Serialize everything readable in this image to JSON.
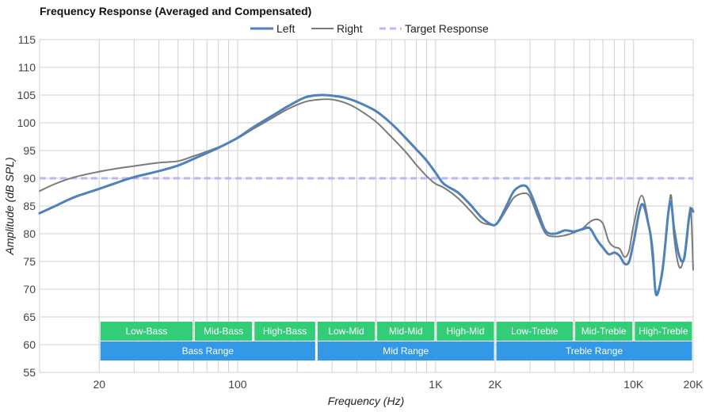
{
  "chart_data": {
    "type": "line",
    "title": "Frequency Response (Averaged and Compensated)",
    "xlabel": "Frequency (Hz)",
    "ylabel": "Amplitude (dB SPL)",
    "x_scale": "log",
    "xlim": [
      10,
      20000
    ],
    "ylim": [
      55,
      115
    ],
    "yticks": [
      55,
      60,
      65,
      70,
      75,
      80,
      85,
      90,
      95,
      100,
      105,
      110,
      115
    ],
    "xticks": [
      {
        "value": 20,
        "label": "20"
      },
      {
        "value": 100,
        "label": "100"
      },
      {
        "value": 1000,
        "label": "1K"
      },
      {
        "value": 2000,
        "label": "2K"
      },
      {
        "value": 10000,
        "label": "10K"
      },
      {
        "value": 20000,
        "label": "20K"
      }
    ],
    "grid": true,
    "legend_position": "top-center",
    "legend": [
      {
        "name": "Left",
        "color": "#4f81bd",
        "style": "solid"
      },
      {
        "name": "Right",
        "color": "#7a7a7a",
        "style": "solid"
      },
      {
        "name": "Target Response",
        "color": "#b8b8f2",
        "style": "dashed"
      }
    ],
    "series": [
      {
        "name": "Left",
        "color": "#4f81bd",
        "x": [
          10,
          12,
          15,
          20,
          25,
          30,
          40,
          50,
          60,
          80,
          100,
          120,
          150,
          180,
          220,
          260,
          300,
          350,
          400,
          500,
          600,
          700,
          800,
          900,
          1000,
          1100,
          1300,
          1500,
          1700,
          1900,
          2000,
          2100,
          2300,
          2500,
          2800,
          3000,
          3300,
          3600,
          4000,
          4500,
          5000,
          5500,
          6000,
          6500,
          7000,
          7500,
          8000,
          8500,
          9000,
          9500,
          10000,
          11000,
          12000,
          12500,
          13000,
          14000,
          15000,
          15500,
          16000,
          17000,
          18000,
          19000,
          19500,
          20000
        ],
        "y": [
          83.7,
          85.0,
          86.6,
          88.1,
          89.3,
          90.2,
          91.3,
          92.3,
          93.5,
          95.5,
          97.3,
          99.2,
          101.3,
          103.0,
          104.6,
          105.0,
          104.9,
          104.5,
          103.8,
          102.1,
          99.8,
          97.4,
          95.2,
          93.2,
          91.0,
          89.0,
          87.4,
          85.2,
          83.0,
          81.7,
          81.6,
          82.5,
          85.3,
          87.8,
          88.7,
          87.5,
          83.8,
          80.5,
          80.0,
          80.6,
          80.4,
          80.8,
          81.0,
          79.0,
          77.5,
          76.3,
          76.6,
          76.0,
          74.6,
          75.0,
          78.5,
          85.3,
          81.0,
          76.5,
          69.0,
          73.5,
          84.0,
          85.5,
          81.0,
          76.0,
          75.5,
          82.5,
          84.5,
          84.0
        ]
      },
      {
        "name": "Right",
        "color": "#7a7a7a",
        "x": [
          10,
          12,
          15,
          20,
          25,
          30,
          40,
          50,
          60,
          80,
          100,
          120,
          150,
          180,
          220,
          260,
          300,
          350,
          400,
          500,
          600,
          700,
          800,
          900,
          1000,
          1100,
          1300,
          1500,
          1700,
          1900,
          2000,
          2100,
          2300,
          2500,
          2800,
          3000,
          3300,
          3600,
          4000,
          4500,
          5000,
          5500,
          6000,
          6500,
          7000,
          7500,
          8000,
          8500,
          9000,
          9500,
          10000,
          11000,
          12000,
          12500,
          13000,
          14000,
          15000,
          15500,
          16000,
          17000,
          18000,
          19000,
          19500,
          20000
        ],
        "y": [
          87.7,
          89.0,
          90.2,
          91.2,
          91.8,
          92.2,
          92.8,
          93.1,
          94.0,
          95.6,
          97.2,
          98.9,
          100.9,
          102.5,
          103.8,
          104.2,
          104.2,
          103.6,
          102.6,
          100.2,
          97.4,
          94.9,
          92.4,
          90.4,
          89.0,
          88.3,
          86.4,
          84.1,
          82.1,
          81.6,
          81.6,
          82.3,
          84.6,
          86.6,
          87.3,
          86.6,
          82.9,
          80.0,
          79.5,
          79.7,
          80.2,
          80.9,
          82.1,
          82.6,
          81.8,
          78.6,
          77.6,
          77.3,
          75.8,
          77.0,
          81.5,
          86.9,
          81.0,
          75.0,
          69.5,
          73.0,
          84.0,
          86.8,
          79.5,
          74.0,
          76.0,
          83.0,
          84.0,
          73.5
        ]
      },
      {
        "name": "Target Response",
        "color": "#b8b8f2",
        "dashed": true,
        "x": [
          10,
          20000
        ],
        "y": [
          90,
          90
        ]
      }
    ],
    "bands": [
      {
        "label": "Low-Bass",
        "from": 20,
        "to": 60,
        "row": 1,
        "color": "#33cc77"
      },
      {
        "label": "Mid-Bass",
        "from": 60,
        "to": 120,
        "row": 1,
        "color": "#33cc77"
      },
      {
        "label": "High-Bass",
        "from": 120,
        "to": 250,
        "row": 1,
        "color": "#33cc77"
      },
      {
        "label": "Low-Mid",
        "from": 250,
        "to": 500,
        "row": 1,
        "color": "#33cc77"
      },
      {
        "label": "Mid-Mid",
        "from": 500,
        "to": 1000,
        "row": 1,
        "color": "#33cc77"
      },
      {
        "label": "High-Mid",
        "from": 1000,
        "to": 2000,
        "row": 1,
        "color": "#33cc77"
      },
      {
        "label": "Low-Treble",
        "from": 2000,
        "to": 5000,
        "row": 1,
        "color": "#33cc77"
      },
      {
        "label": "Mid-Treble",
        "from": 5000,
        "to": 10000,
        "row": 1,
        "color": "#33cc77"
      },
      {
        "label": "High-Treble",
        "from": 10000,
        "to": 20000,
        "row": 1,
        "color": "#33cc77"
      },
      {
        "label": "Bass Range",
        "from": 20,
        "to": 250,
        "row": 2,
        "color": "#3399e6"
      },
      {
        "label": "Mid Range",
        "from": 250,
        "to": 2000,
        "row": 2,
        "color": "#3399e6"
      },
      {
        "label": "Treble Range",
        "from": 2000,
        "to": 20000,
        "row": 2,
        "color": "#3399e6"
      }
    ]
  }
}
